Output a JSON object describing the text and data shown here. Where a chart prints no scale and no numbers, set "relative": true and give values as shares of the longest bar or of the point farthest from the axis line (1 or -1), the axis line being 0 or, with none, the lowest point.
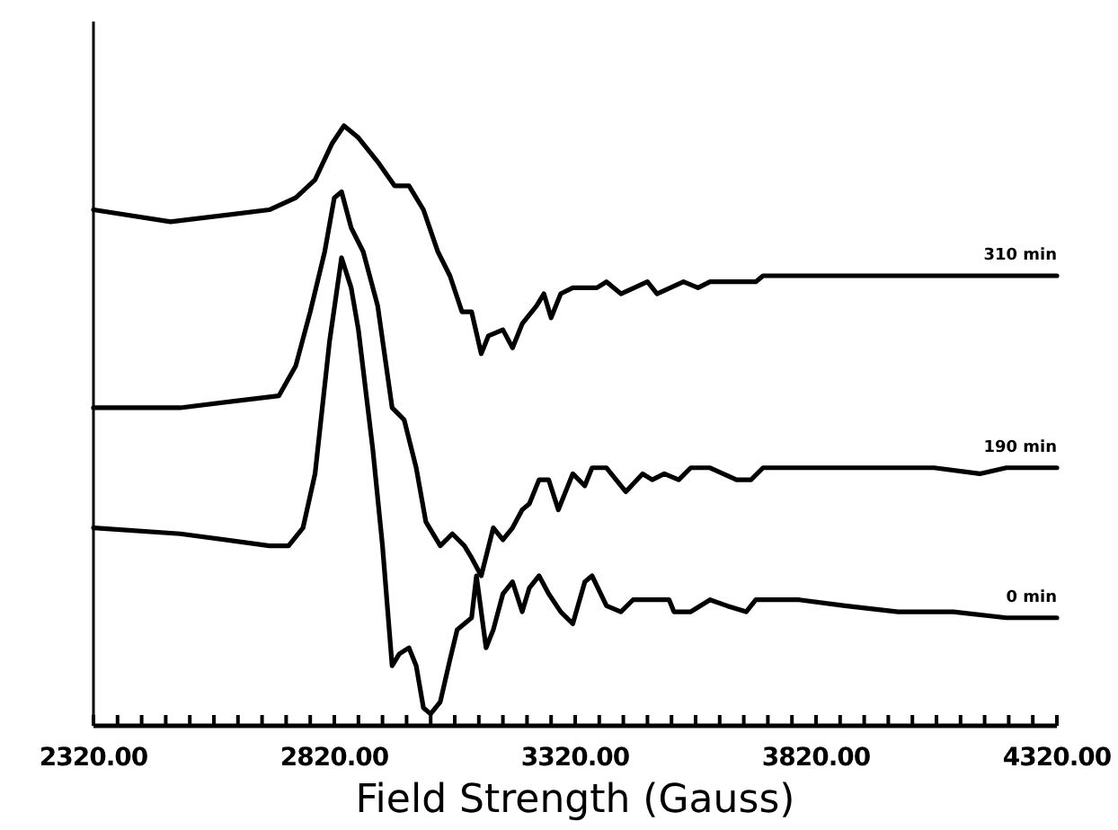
{
  "chart_data": {
    "type": "line",
    "xlabel": "Field Strength (Gauss)",
    "relative": true,
    "tick_labels": "x",
    "legend": false,
    "grid": false,
    "marker": "none",
    "line_style": "solid",
    "xlim": [
      2320,
      4320
    ],
    "xticks": [
      {
        "value": 2320,
        "label": "2320.00"
      },
      {
        "value": 2370,
        "label": null
      },
      {
        "value": 2420,
        "label": null
      },
      {
        "value": 2470,
        "label": null
      },
      {
        "value": 2520,
        "label": null
      },
      {
        "value": 2570,
        "label": null
      },
      {
        "value": 2620,
        "label": null
      },
      {
        "value": 2670,
        "label": null
      },
      {
        "value": 2720,
        "label": null
      },
      {
        "value": 2770,
        "label": null
      },
      {
        "value": 2820,
        "label": "2820.00"
      },
      {
        "value": 2870,
        "label": null
      },
      {
        "value": 2920,
        "label": null
      },
      {
        "value": 2970,
        "label": null
      },
      {
        "value": 3020,
        "label": null
      },
      {
        "value": 3070,
        "label": null
      },
      {
        "value": 3120,
        "label": null
      },
      {
        "value": 3170,
        "label": null
      },
      {
        "value": 3220,
        "label": null
      },
      {
        "value": 3270,
        "label": null
      },
      {
        "value": 3320,
        "label": "3320.00"
      },
      {
        "value": 3370,
        "label": null
      },
      {
        "value": 3420,
        "label": null
      },
      {
        "value": 3470,
        "label": null
      },
      {
        "value": 3520,
        "label": null
      },
      {
        "value": 3570,
        "label": null
      },
      {
        "value": 3620,
        "label": null
      },
      {
        "value": 3670,
        "label": null
      },
      {
        "value": 3720,
        "label": null
      },
      {
        "value": 3770,
        "label": null
      },
      {
        "value": 3820,
        "label": "3820.00"
      },
      {
        "value": 3870,
        "label": null
      },
      {
        "value": 3920,
        "label": null
      },
      {
        "value": 3970,
        "label": null
      },
      {
        "value": 4020,
        "label": null
      },
      {
        "value": 4070,
        "label": null
      },
      {
        "value": 4120,
        "label": null
      },
      {
        "value": 4170,
        "label": null
      },
      {
        "value": 4220,
        "label": null
      },
      {
        "value": 4270,
        "label": null
      },
      {
        "value": 4320,
        "label": "4320.00"
      }
    ],
    "series": [
      {
        "name": "310 min",
        "color": "#000000",
        "x": [
          2320,
          2480,
          2685,
          2740,
          2780,
          2815,
          2840,
          2870,
          2910,
          2945,
          2975,
          3005,
          3035,
          3060,
          3085,
          3105,
          3125,
          3140,
          3170,
          3190,
          3210,
          3240,
          3255,
          3270,
          3290,
          3315,
          3365,
          3385,
          3415,
          3470,
          3490,
          3545,
          3575,
          3600,
          3655,
          3695,
          3710,
          3785,
          3880,
          4065,
          4140,
          4320
        ],
        "values": [
          0.86,
          0.84,
          0.86,
          0.88,
          0.91,
          0.97,
          1,
          0.98,
          0.94,
          0.9,
          0.9,
          0.86,
          0.79,
          0.75,
          0.69,
          0.69,
          0.62,
          0.65,
          0.66,
          0.63,
          0.67,
          0.7,
          0.72,
          0.68,
          0.72,
          0.73,
          0.73,
          0.74,
          0.72,
          0.74,
          0.72,
          0.74,
          0.73,
          0.74,
          0.74,
          0.74,
          0.75,
          0.75,
          0.75,
          0.75,
          0.75,
          0.75
        ]
      },
      {
        "name": "190 min",
        "color": "#000000",
        "x": [
          2320,
          2500,
          2705,
          2740,
          2770,
          2800,
          2820,
          2835,
          2855,
          2880,
          2910,
          2940,
          2965,
          2990,
          3010,
          3040,
          3065,
          3090,
          3105,
          3125,
          3150,
          3170,
          3190,
          3210,
          3225,
          3245,
          3265,
          3285,
          3315,
          3340,
          3355,
          3385,
          3425,
          3460,
          3480,
          3505,
          3535,
          3560,
          3600,
          3655,
          3685,
          3710,
          3770,
          3825,
          3915,
          3990,
          4065,
          4160,
          4215,
          4320
        ],
        "values": [
          0.53,
          0.53,
          0.55,
          0.6,
          0.69,
          0.79,
          0.88,
          0.89,
          0.83,
          0.79,
          0.7,
          0.53,
          0.51,
          0.43,
          0.34,
          0.3,
          0.32,
          0.3,
          0.28,
          0.25,
          0.33,
          0.31,
          0.33,
          0.36,
          0.37,
          0.41,
          0.41,
          0.36,
          0.42,
          0.4,
          0.43,
          0.43,
          0.39,
          0.42,
          0.41,
          0.42,
          0.41,
          0.43,
          0.43,
          0.41,
          0.41,
          0.43,
          0.43,
          0.43,
          0.43,
          0.43,
          0.43,
          0.42,
          0.43,
          0.43
        ]
      },
      {
        "name": "0 min",
        "color": "#000000",
        "x": [
          2320,
          2500,
          2685,
          2725,
          2755,
          2780,
          2810,
          2835,
          2855,
          2870,
          2900,
          2920,
          2940,
          2955,
          2975,
          2990,
          3005,
          3020,
          3040,
          3060,
          3075,
          3105,
          3115,
          3135,
          3150,
          3170,
          3190,
          3210,
          3225,
          3245,
          3265,
          3290,
          3315,
          3340,
          3355,
          3385,
          3415,
          3440,
          3470,
          3515,
          3525,
          3560,
          3600,
          3635,
          3675,
          3695,
          3785,
          3880,
          3990,
          4105,
          4215,
          4320
        ],
        "values": [
          0.33,
          0.32,
          0.3,
          0.3,
          0.33,
          0.42,
          0.64,
          0.78,
          0.73,
          0.66,
          0.46,
          0.3,
          0.1,
          0.12,
          0.13,
          0.1,
          0.03,
          0.02,
          0.04,
          0.11,
          0.16,
          0.18,
          0.25,
          0.13,
          0.16,
          0.22,
          0.24,
          0.19,
          0.23,
          0.25,
          0.22,
          0.19,
          0.17,
          0.24,
          0.25,
          0.2,
          0.19,
          0.21,
          0.21,
          0.21,
          0.19,
          0.19,
          0.21,
          0.2,
          0.19,
          0.21,
          0.21,
          0.2,
          0.19,
          0.19,
          0.18,
          0.18
        ]
      }
    ]
  }
}
